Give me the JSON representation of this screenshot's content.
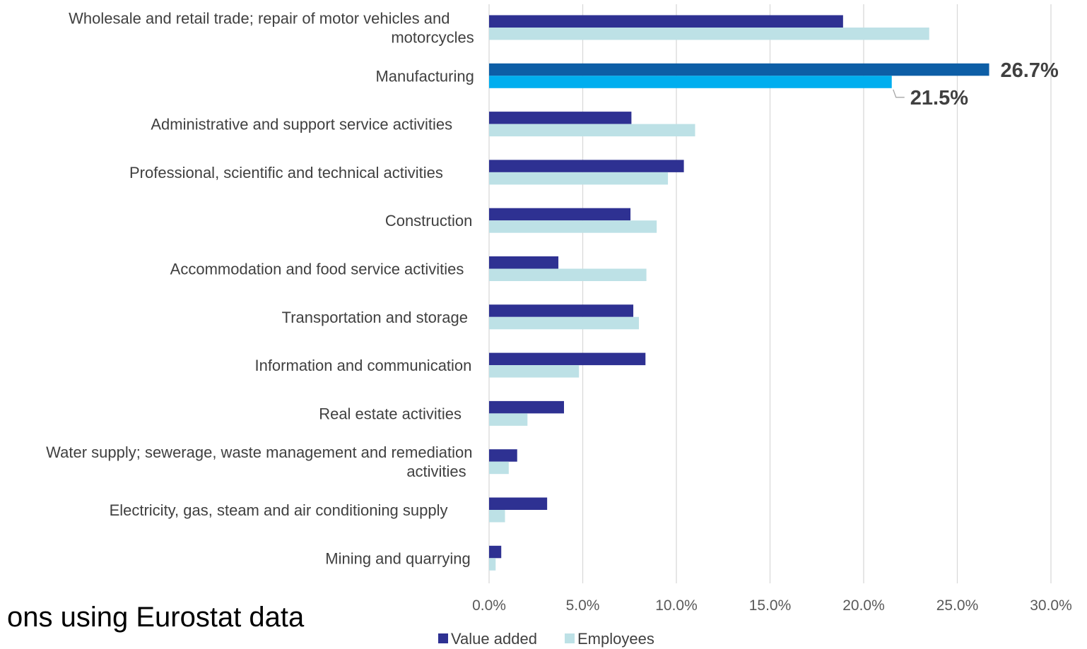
{
  "source_text": "ons using Eurostat data",
  "chart_data": {
    "type": "bar",
    "orientation": "horizontal",
    "categories": [
      "Wholesale and retail trade; repair of motor vehicles and motorcycles",
      "Manufacturing",
      "Administrative and support service activities",
      "Professional, scientific and technical activities",
      "Construction",
      "Accommodation and food service activities",
      "Transportation and storage",
      "Information and communication",
      "Real estate activities",
      "Water supply; sewerage, waste management and remediation activities",
      "Electricity, gas, steam and air conditioning supply",
      "Mining and quarrying"
    ],
    "category_lines": [
      [
        "Wholesale and retail trade; repair of motor vehicles and",
        "motorcycles"
      ],
      [
        "Manufacturing"
      ],
      [
        "Administrative and support service activities"
      ],
      [
        "Professional, scientific and technical activities"
      ],
      [
        "Construction"
      ],
      [
        "Accommodation and food service activities"
      ],
      [
        "Transportation and storage"
      ],
      [
        "Information and communication"
      ],
      [
        "Real estate activities"
      ],
      [
        "Water supply; sewerage, waste management and remediation",
        "activities"
      ],
      [
        "Electricity, gas, steam and air conditioning supply"
      ],
      [
        "Mining and quarrying"
      ]
    ],
    "series": [
      {
        "name": "Value added",
        "color": "#2e3192",
        "values": [
          18.9,
          26.7,
          7.6,
          10.4,
          7.55,
          3.7,
          7.7,
          8.35,
          4.0,
          1.5,
          3.1,
          0.65
        ]
      },
      {
        "name": "Employees",
        "color": "#bde1e6",
        "values": [
          23.5,
          21.5,
          11.0,
          9.55,
          8.95,
          8.4,
          8.0,
          4.8,
          2.05,
          1.05,
          0.85,
          0.35
        ]
      }
    ],
    "highlight": {
      "category_index": 1,
      "colors": [
        "#0d5ea6",
        "#00aeef"
      ],
      "labels": [
        "26.7%",
        "21.5%"
      ]
    },
    "xlim": [
      0,
      30
    ],
    "xticks": [
      "0.0%",
      "5.0%",
      "10.0%",
      "15.0%",
      "20.0%",
      "25.0%",
      "30.0%"
    ],
    "grid": "vertical",
    "legend_position": "bottom",
    "gridline_color": "#d9d9d9"
  }
}
